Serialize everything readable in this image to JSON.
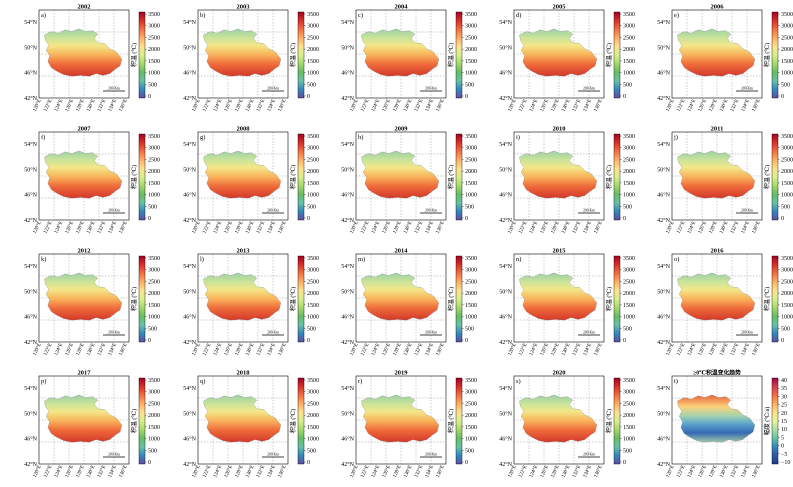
{
  "panels": [
    {
      "letter": "a)",
      "year": "2002"
    },
    {
      "letter": "b)",
      "year": "2003"
    },
    {
      "letter": "c)",
      "year": "2004"
    },
    {
      "letter": "d)",
      "year": "2005"
    },
    {
      "letter": "e)",
      "year": "2006"
    },
    {
      "letter": "f)",
      "year": "2007"
    },
    {
      "letter": "g)",
      "year": "2008"
    },
    {
      "letter": "h)",
      "year": "2009"
    },
    {
      "letter": "i)",
      "year": "2010"
    },
    {
      "letter": "j)",
      "year": "2011"
    },
    {
      "letter": "k)",
      "year": "2012"
    },
    {
      "letter": "l)",
      "year": "2013"
    },
    {
      "letter": "m)",
      "year": "2014"
    },
    {
      "letter": "n)",
      "year": "2015"
    },
    {
      "letter": "o)",
      "year": "2016"
    },
    {
      "letter": "p)",
      "year": "2017"
    },
    {
      "letter": "q)",
      "year": "2018"
    },
    {
      "letter": "r)",
      "year": "2019"
    },
    {
      "letter": "s)",
      "year": "2020"
    },
    {
      "letter": "t)",
      "year": "≥0℃积温变化趋势"
    }
  ],
  "lat_ticks": [
    "54°N",
    "50°N",
    "46°N",
    "42°N"
  ],
  "lon_ticks": [
    "120°E",
    "122°E",
    "124°E",
    "126°E",
    "128°E",
    "130°E",
    "132°E",
    "134°E",
    "136°E"
  ],
  "scalebar_label": "200 Km",
  "accum_colorbar": {
    "title": "积温 (℃)",
    "ticks": [
      "3500",
      "3000",
      "2500",
      "2000",
      "1500",
      "1000",
      "500",
      "0"
    ],
    "colors": [
      "#a50026",
      "#d73027",
      "#f46d43",
      "#fdae61",
      "#fee08b",
      "#d9ef8b",
      "#a6d96a",
      "#66bd63",
      "#66c2a5",
      "#3288bd",
      "#5e4fa2"
    ]
  },
  "trend_colorbar": {
    "title": "幅度 (℃/a)",
    "ticks": [
      "40",
      "35",
      "30",
      "25",
      "20",
      "15",
      "10",
      "5",
      "0",
      "−5",
      "−10"
    ],
    "colors": [
      "#9e0142",
      "#d53e4f",
      "#f46d43",
      "#fdae61",
      "#fee08b",
      "#e6f598",
      "#abdda4",
      "#66c2a5",
      "#3288bd",
      "#2c5aa0",
      "#1f3b8a"
    ]
  }
}
